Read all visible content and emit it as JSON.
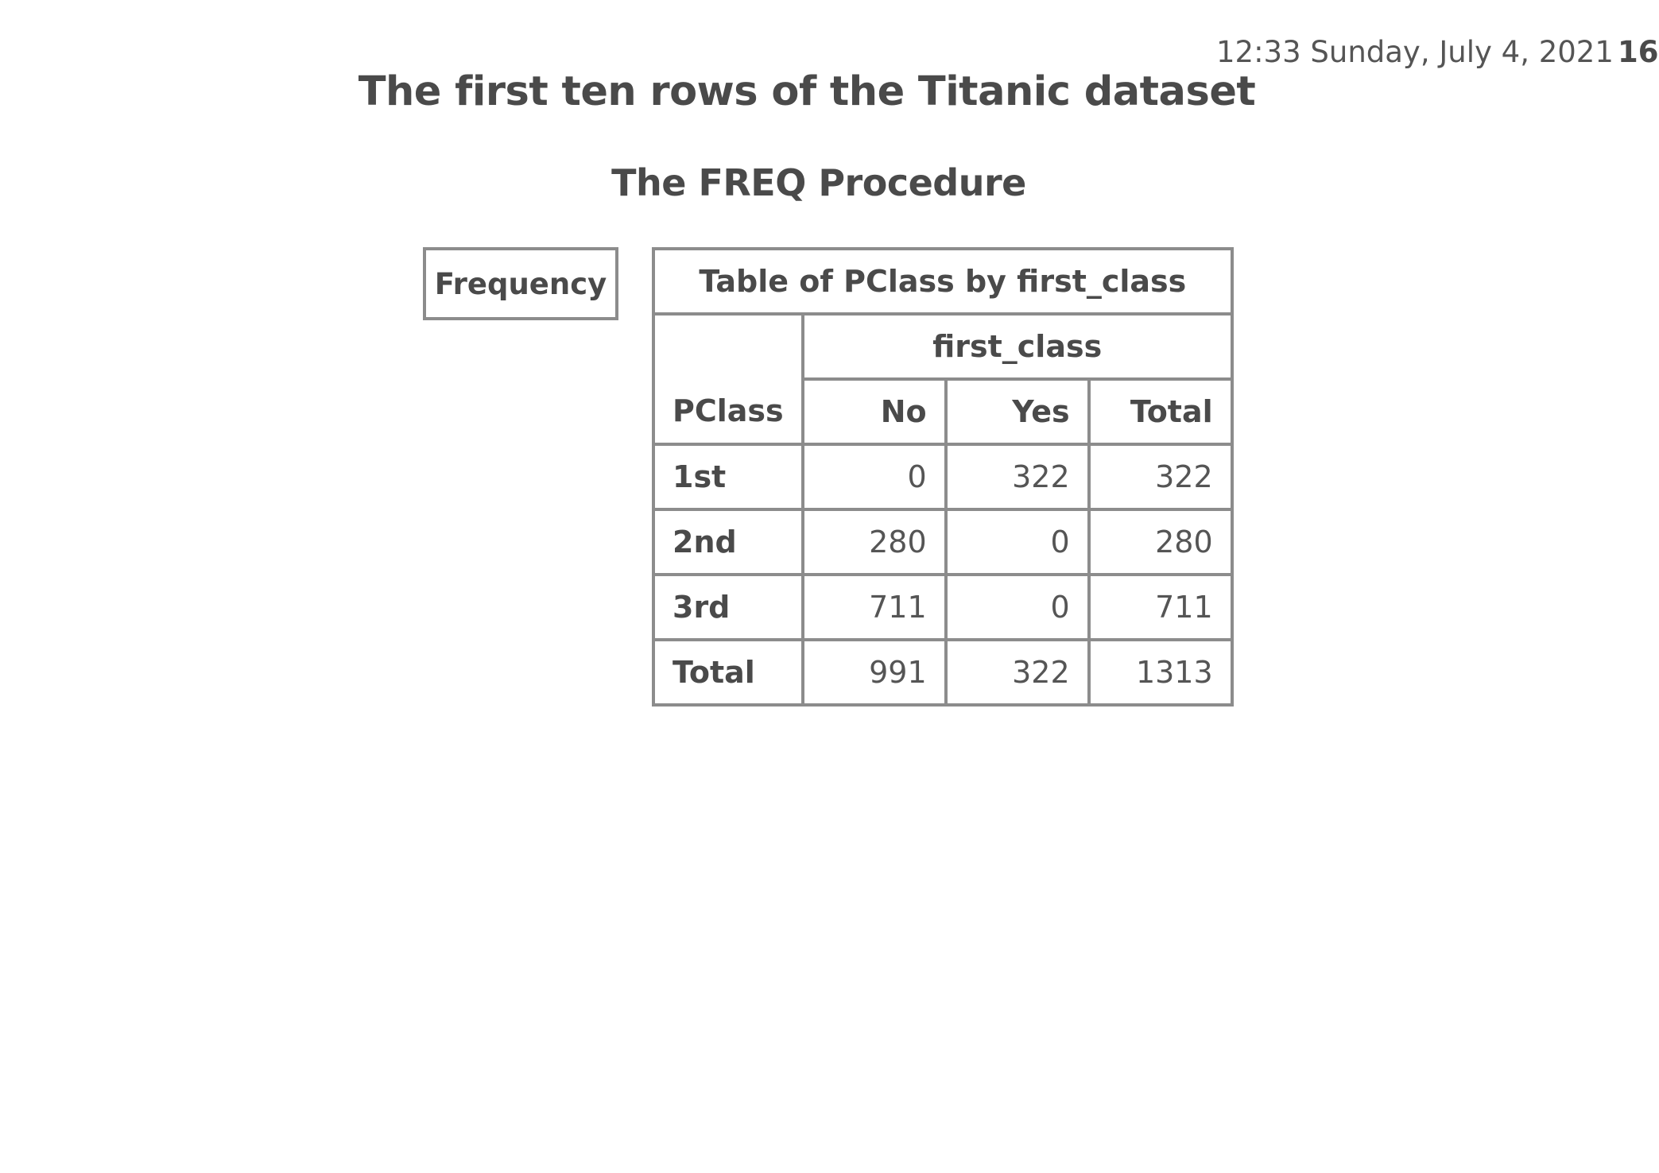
{
  "header": {
    "datetime": "12:33 Sunday, July 4, 2021",
    "page_number": "16"
  },
  "title": "The first ten rows of the Titanic dataset",
  "procedure": "The FREQ Procedure",
  "legend": {
    "label": "Frequency"
  },
  "table": {
    "title": "Table of PClass by first_class",
    "column_group": "first_class",
    "row_header": "PClass",
    "columns": [
      "No",
      "Yes",
      "Total"
    ],
    "rows": [
      {
        "label": "1st",
        "values": [
          "0",
          "322",
          "322"
        ]
      },
      {
        "label": "2nd",
        "values": [
          "280",
          "0",
          "280"
        ]
      },
      {
        "label": "3rd",
        "values": [
          "711",
          "0",
          "711"
        ]
      },
      {
        "label": "Total",
        "values": [
          "991",
          "322",
          "1313"
        ]
      }
    ]
  }
}
